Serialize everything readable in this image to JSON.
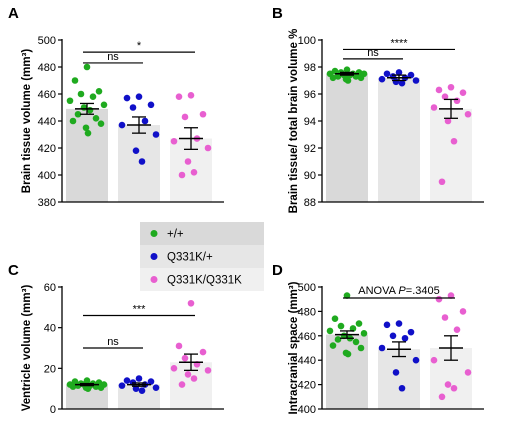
{
  "legend": {
    "items": [
      {
        "label": "+/+",
        "color": "#1faa1f",
        "bg": "#d9d9d9"
      },
      {
        "label": "Q331K/+",
        "color": "#1010c8",
        "bg": "#e6e6e6"
      },
      {
        "label": "Q331K/Q331K",
        "color": "#e85fd0",
        "bg": "#f0f0f0"
      }
    ]
  },
  "chart_data": [
    {
      "panel": "A",
      "type": "bar",
      "ylabel": "Brain tissue volume (mm³)",
      "ylim": [
        380,
        500
      ],
      "yticks": [
        "380",
        "400",
        "420",
        "440",
        "460",
        "480",
        "500"
      ],
      "groups": [
        {
          "name": "+/+",
          "mean": 449,
          "sem": 4,
          "points": [
            480,
            470,
            462,
            460,
            458,
            455,
            452,
            450,
            448,
            445,
            442,
            440,
            438,
            435,
            431
          ]
        },
        {
          "name": "Q331K/+",
          "mean": 437,
          "sem": 6,
          "points": [
            458,
            457,
            452,
            450,
            440,
            437,
            430,
            418,
            410
          ]
        },
        {
          "name": "Q331K/Q331K",
          "mean": 427,
          "sem": 8,
          "points": [
            459,
            458,
            445,
            443,
            427,
            425,
            420,
            410,
            402,
            400
          ]
        }
      ],
      "comparisons": [
        {
          "from": 0,
          "to": 1,
          "label": "ns",
          "y": 483
        },
        {
          "from": 0,
          "to": 2,
          "label": "*",
          "y": 491
        }
      ]
    },
    {
      "panel": "B",
      "type": "bar",
      "ylabel": "Brain tissue/ total brain volume %",
      "ylim": [
        88,
        100
      ],
      "yticks": [
        "88",
        "90",
        "92",
        "94",
        "96",
        "98",
        "100"
      ],
      "groups": [
        {
          "name": "+/+",
          "mean": 97.5,
          "sem": 0.1,
          "points": [
            97.8,
            97.7,
            97.6,
            97.6,
            97.5,
            97.5,
            97.5,
            97.4,
            97.4,
            97.3,
            97.3,
            97.2,
            97.2,
            97.1,
            97.0
          ]
        },
        {
          "name": "Q331K/+",
          "mean": 97.2,
          "sem": 0.2,
          "points": [
            97.6,
            97.5,
            97.4,
            97.3,
            97.2,
            97.1,
            97.0,
            96.9,
            96.8
          ]
        },
        {
          "name": "Q331K/Q331K",
          "mean": 94.9,
          "sem": 0.7,
          "points": [
            96.5,
            96.3,
            96.1,
            95.8,
            95.5,
            95.0,
            94.5,
            94.0,
            92.5,
            89.5
          ]
        }
      ],
      "comparisons": [
        {
          "from": 0,
          "to": 1,
          "label": "ns",
          "y": 98.6
        },
        {
          "from": 0,
          "to": 2,
          "label": "****",
          "y": 99.3
        }
      ]
    },
    {
      "panel": "C",
      "type": "bar",
      "ylabel": "Ventricle volume (mm³)",
      "ylim": [
        0,
        60
      ],
      "yticks": [
        "0",
        "20",
        "40",
        "60"
      ],
      "groups": [
        {
          "name": "+/+",
          "mean": 12,
          "sem": 0.5,
          "points": [
            14,
            13.5,
            13,
            12.5,
            12.5,
            12,
            12,
            12,
            11.5,
            11.5,
            11,
            11,
            10.5,
            10.5,
            10
          ]
        },
        {
          "name": "Q331K/+",
          "mean": 12,
          "sem": 0.8,
          "points": [
            15,
            14,
            13.5,
            13,
            12,
            11.5,
            10.5,
            10,
            9
          ]
        },
        {
          "name": "Q331K/Q331K",
          "mean": 23,
          "sem": 4,
          "points": [
            52,
            31,
            28,
            25,
            22,
            20,
            19,
            17,
            15,
            12
          ]
        }
      ],
      "comparisons": [
        {
          "from": 0,
          "to": 1,
          "label": "ns",
          "y": 30
        },
        {
          "from": 0,
          "to": 2,
          "label": "***",
          "y": 46
        }
      ]
    },
    {
      "panel": "D",
      "type": "bar",
      "ylabel": "Intracranial space (mm³)",
      "ylim": [
        400,
        500
      ],
      "yticks": [
        "400",
        "420",
        "440",
        "460",
        "480",
        "500"
      ],
      "groups": [
        {
          "name": "+/+",
          "mean": 461,
          "sem": 3,
          "points": [
            493,
            474,
            470,
            468,
            466,
            464,
            462,
            460,
            458,
            457,
            455,
            452,
            450,
            446,
            445
          ]
        },
        {
          "name": "Q331K/+",
          "mean": 449,
          "sem": 6,
          "points": [
            470,
            469,
            463,
            460,
            458,
            450,
            440,
            430,
            417
          ]
        },
        {
          "name": "Q331K/Q331K",
          "mean": 450,
          "sem": 10,
          "points": [
            493,
            490,
            480,
            475,
            465,
            440,
            430,
            420,
            417,
            410
          ]
        }
      ],
      "annotation": {
        "prefix": "ANOVA ",
        "italic": "P",
        "suffix": "=.3405",
        "from": 0,
        "to": 2,
        "y": 491
      }
    }
  ]
}
